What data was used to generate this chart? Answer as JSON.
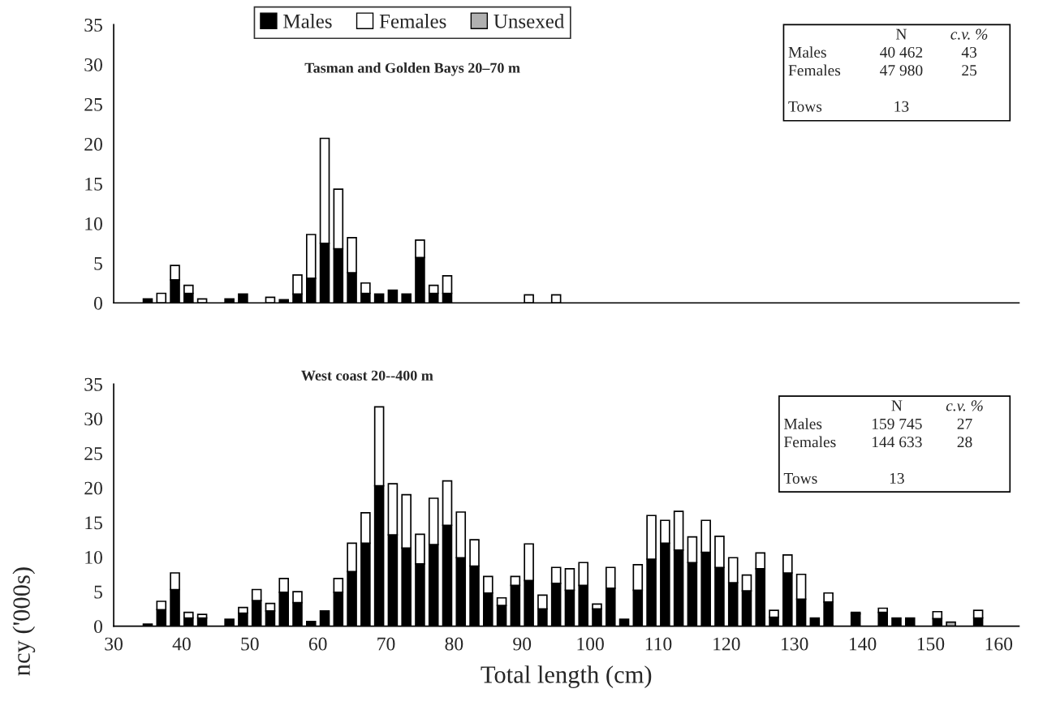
{
  "chart_data": [
    {
      "type": "bar",
      "stacked": true,
      "title": "Tasman and Golden Bays 20–70 m",
      "legend": "top",
      "tick_labels": "y",
      "x": [
        35,
        37,
        39,
        41,
        43,
        45,
        47,
        49,
        51,
        53,
        55,
        57,
        59,
        61,
        63,
        65,
        67,
        69,
        71,
        73,
        75,
        77,
        79,
        81,
        83,
        85,
        87,
        89,
        91,
        93,
        95
      ],
      "series": [
        {
          "name": "Males",
          "color": "#000000",
          "values": [
            0.5,
            null,
            2.9,
            1.2,
            null,
            null,
            0.5,
            1.1,
            null,
            null,
            0.4,
            1.1,
            3.1,
            7.5,
            6.8,
            3.8,
            1.2,
            1.1,
            1.6,
            1.1,
            5.7,
            1.2,
            1.2,
            null,
            null,
            null,
            null,
            null,
            null,
            null,
            null
          ]
        },
        {
          "name": "Females",
          "color": "#ffffff",
          "values": [
            null,
            1.2,
            1.8,
            1.0,
            0.5,
            null,
            null,
            null,
            null,
            0.7,
            null,
            2.4,
            5.5,
            13.2,
            7.5,
            4.4,
            1.3,
            null,
            null,
            null,
            2.2,
            1.0,
            2.2,
            null,
            null,
            null,
            null,
            null,
            1.0,
            null,
            1.0
          ]
        },
        {
          "name": "Unsexed",
          "color": "#b0b0b0",
          "values": [
            null,
            null,
            null,
            null,
            null,
            null,
            null,
            null,
            null,
            null,
            null,
            null,
            null,
            null,
            null,
            null,
            null,
            null,
            null,
            null,
            null,
            null,
            null,
            null,
            null,
            null,
            null,
            null,
            null,
            null,
            null
          ]
        }
      ],
      "xlim": [
        30,
        163
      ],
      "xticks": [
        30,
        40,
        50,
        60,
        70,
        80,
        90,
        100,
        110,
        120,
        130,
        140,
        150,
        160
      ],
      "ylim": [
        0,
        35
      ],
      "yticks": [
        0,
        5,
        10,
        15,
        20,
        25,
        30,
        35
      ],
      "annotations": [
        "N",
        "c.v. %",
        "Males",
        "40 462",
        "43",
        "Females",
        "47 980",
        "25",
        "Tows",
        "13"
      ]
    },
    {
      "type": "bar",
      "stacked": true,
      "title": "West coast 20--400 m",
      "xlabel": "Total length (cm)",
      "ylabel": "ncy ('000s)",
      "x": [
        35,
        37,
        39,
        41,
        43,
        45,
        47,
        49,
        51,
        53,
        55,
        57,
        59,
        61,
        63,
        65,
        67,
        69,
        71,
        73,
        75,
        77,
        79,
        81,
        83,
        85,
        87,
        89,
        91,
        93,
        95,
        97,
        99,
        101,
        103,
        105,
        107,
        109,
        111,
        113,
        115,
        117,
        119,
        121,
        123,
        125,
        127,
        129,
        131,
        133,
        135,
        137,
        139,
        141,
        143,
        145,
        147,
        149,
        151,
        153,
        155,
        157
      ],
      "series": [
        {
          "color": "#000000",
          "values": [
            0.3,
            2.4,
            5.3,
            1.2,
            1.2,
            null,
            1.0,
            1.9,
            3.7,
            2.2,
            4.9,
            3.4,
            0.7,
            2.2,
            4.9,
            7.9,
            12.0,
            20.3,
            13.2,
            11.3,
            9.0,
            11.8,
            14.6,
            9.9,
            8.7,
            4.8,
            3.0,
            5.9,
            6.6,
            2.5,
            6.2,
            5.2,
            5.9,
            2.5,
            5.5,
            1.0,
            5.2,
            9.7,
            12.0,
            11.0,
            9.2,
            10.7,
            8.5,
            6.3,
            5.1,
            8.3,
            1.3,
            7.7,
            3.9,
            1.2,
            3.5,
            null,
            1.8,
            null,
            2.0,
            1.2,
            1.2,
            null,
            1.1,
            null,
            null,
            1.2
          ]
        },
        {
          "color": "#ffffff",
          "values": [
            null,
            1.2,
            2.4,
            0.8,
            0.5,
            null,
            null,
            0.8,
            1.6,
            1.1,
            2.0,
            1.6,
            null,
            null,
            2.0,
            4.1,
            4.4,
            11.4,
            7.4,
            7.7,
            4.3,
            6.7,
            6.4,
            6.6,
            3.8,
            2.4,
            1.1,
            1.3,
            5.3,
            2.0,
            2.3,
            3.1,
            3.3,
            0.7,
            3.0,
            null,
            3.7,
            6.3,
            3.3,
            5.6,
            3.7,
            4.6,
            4.5,
            3.6,
            2.3,
            2.3,
            1.0,
            2.6,
            3.6,
            null,
            1.3,
            null,
            0.2,
            null,
            0.6,
            null,
            null,
            null,
            1.0,
            null,
            null,
            1.1
          ]
        },
        {
          "color": "#b0b0b0",
          "values": [
            null,
            null,
            null,
            null,
            null,
            null,
            null,
            null,
            null,
            null,
            null,
            null,
            null,
            null,
            null,
            null,
            null,
            null,
            null,
            null,
            null,
            null,
            null,
            null,
            null,
            null,
            null,
            null,
            null,
            null,
            null,
            null,
            null,
            null,
            null,
            null,
            null,
            null,
            null,
            null,
            null,
            null,
            null,
            null,
            null,
            null,
            null,
            null,
            null,
            null,
            null,
            null,
            null,
            null,
            null,
            null,
            null,
            null,
            null,
            0.6,
            null,
            null
          ]
        }
      ],
      "xlim": [
        30,
        163
      ],
      "xticks": [
        30,
        40,
        50,
        60,
        70,
        80,
        90,
        100,
        110,
        120,
        130,
        140,
        150,
        160
      ],
      "ylim": [
        0,
        35
      ],
      "yticks": [
        0,
        5,
        10,
        15,
        20,
        25,
        30,
        35
      ],
      "annotations": [
        "N",
        "c.v. %",
        "Males",
        "159 745",
        "27",
        "Females",
        "144 633",
        "28",
        "Tows",
        "13"
      ]
    }
  ]
}
